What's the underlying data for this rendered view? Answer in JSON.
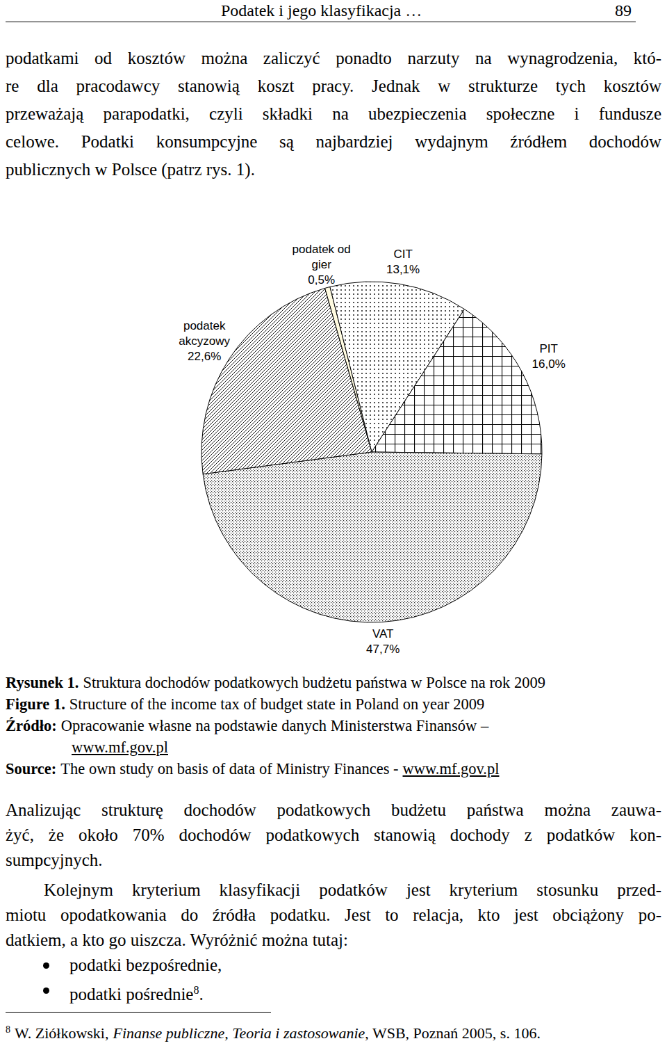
{
  "header": {
    "title": "Podatek i jego klasyfikacja …",
    "page": "89"
  },
  "paragraphs_top": [
    [
      "podatkami od kosztów można zaliczyć ponadto narzuty na wynagrodzenia, któ-",
      "re dla pracodawcy stanowią koszt pracy. Jednak w strukturze tych kosztów",
      "przeważają parapodatki, czyli składki na ubezpieczenia społeczne i fundusze",
      "celowe. Podatki konsumpcyjne są najbardziej wydajnym źródłem dochodów",
      "publicznych w Polsce (patrz rys. 1)."
    ]
  ],
  "chart_data": {
    "type": "pie",
    "categories": [
      "podatek od gier",
      "CIT",
      "PIT",
      "VAT",
      "podatek akcyzowy"
    ],
    "values": [
      0.5,
      13.1,
      16.0,
      47.7,
      22.6
    ],
    "value_labels": [
      "0,5%",
      "13,1%",
      "16,0%",
      "47,7%",
      "22,6%"
    ],
    "colors": [
      "#fffbe0",
      "#ffffff",
      "#ffffff",
      "#ffffff",
      "#ffffff"
    ],
    "data_labels": true
  },
  "figure": {
    "caption_pl": {
      "label": "Rysunek 1.",
      "text": "Struktura dochodów podatkowych budżetu państwa w Polsce na rok 2009"
    },
    "caption_en": {
      "label": "Figure 1.",
      "text": "Structure of the income tax of budget state in Poland on year 2009"
    },
    "source_pl": {
      "label": "Źródło:",
      "text": "Opracowanie własne na podstawie danych Ministerstwa Finansów –",
      "link": "www.mf.gov.pl"
    },
    "source_en": {
      "label": "Source:",
      "text": "The own study on basis of data of Ministry Finances -",
      "link": "www.mf.gov.pl"
    }
  },
  "paragraphs_bottom": [
    [
      "Analizując strukturę dochodów podatkowych budżetu państwa można zauwa-",
      "żyć, że około 70% dochodów podatkowych stanowią dochody z podatków kon-",
      "sumpcyjnych."
    ],
    [
      "Kolejnym kryterium klasyfikacji podatków jest kryterium stosunku przed-",
      "miotu opodatkowania do źródła podatku. Jest to relacja, kto jest obciążony po-",
      "datkiem, a kto go uiszcza. Wyróżnić można tutaj:"
    ]
  ],
  "bullets": [
    {
      "text": "podatki bezpośrednie,"
    },
    {
      "text": "podatki pośrednie",
      "note": "8",
      "end": "."
    }
  ],
  "footnote": {
    "mark": "8",
    "author": "W. Ziółkowski,",
    "title": "Finanse publiczne, Teoria i zastosowanie",
    "rest": ", WSB, Poznań 2005, s. 106."
  }
}
